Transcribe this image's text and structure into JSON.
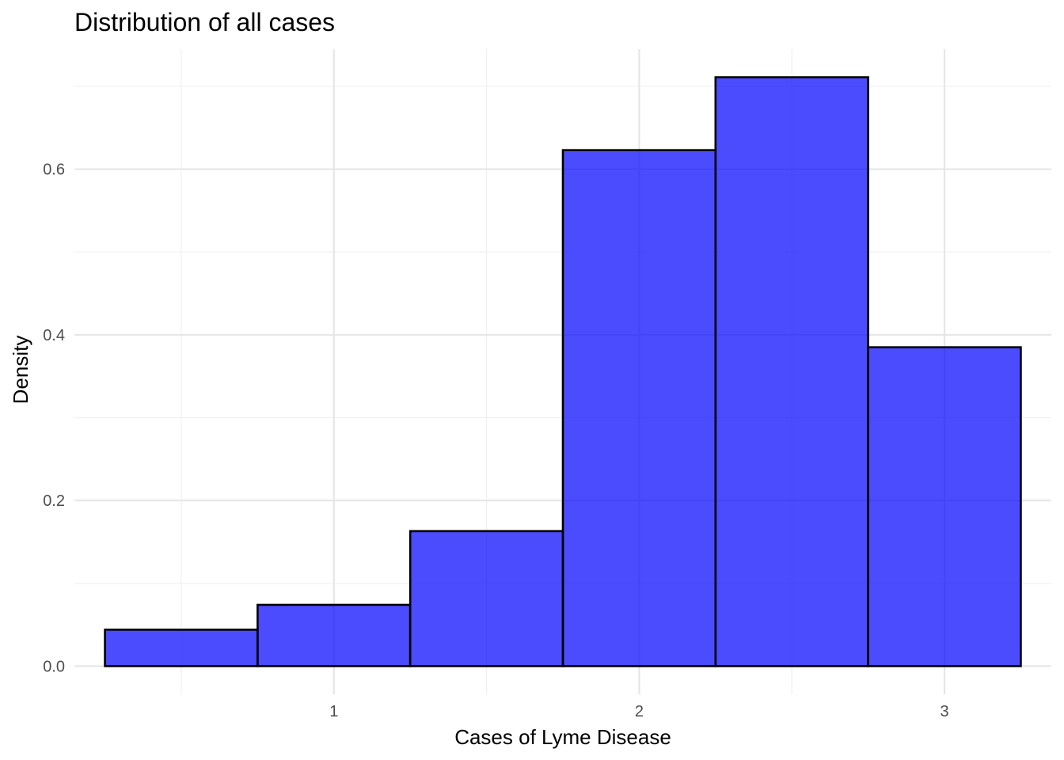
{
  "chart_data": {
    "type": "bar",
    "title": "Distribution of all cases",
    "xlabel": "Cases of Lyme Disease",
    "ylabel": "Density",
    "bins": [
      {
        "x0": 0.25,
        "x1": 0.75,
        "density": 0.044
      },
      {
        "x0": 0.75,
        "x1": 1.25,
        "density": 0.074
      },
      {
        "x0": 1.25,
        "x1": 1.75,
        "density": 0.163
      },
      {
        "x0": 1.75,
        "x1": 2.25,
        "density": 0.623
      },
      {
        "x0": 2.25,
        "x1": 2.75,
        "density": 0.711
      },
      {
        "x0": 2.75,
        "x1": 3.25,
        "density": 0.385
      }
    ],
    "xlim": [
      0.15,
      3.35
    ],
    "ylim": [
      -0.034,
      0.745
    ],
    "x_ticks": [
      1,
      2,
      3
    ],
    "x_tick_labels": [
      "1",
      "2",
      "3"
    ],
    "x_minor_ticks": [
      0.5,
      1.5,
      2.5
    ],
    "y_ticks": [
      0,
      0.2,
      0.4,
      0.6
    ],
    "y_tick_labels": [
      "0.0",
      "0.2",
      "0.4",
      "0.6"
    ],
    "y_minor_ticks": [
      0.1,
      0.3,
      0.5,
      0.7
    ],
    "grid": true,
    "bar_fill": "#0000ff",
    "bar_fill_opacity": 0.7,
    "bar_stroke": "#000000"
  }
}
